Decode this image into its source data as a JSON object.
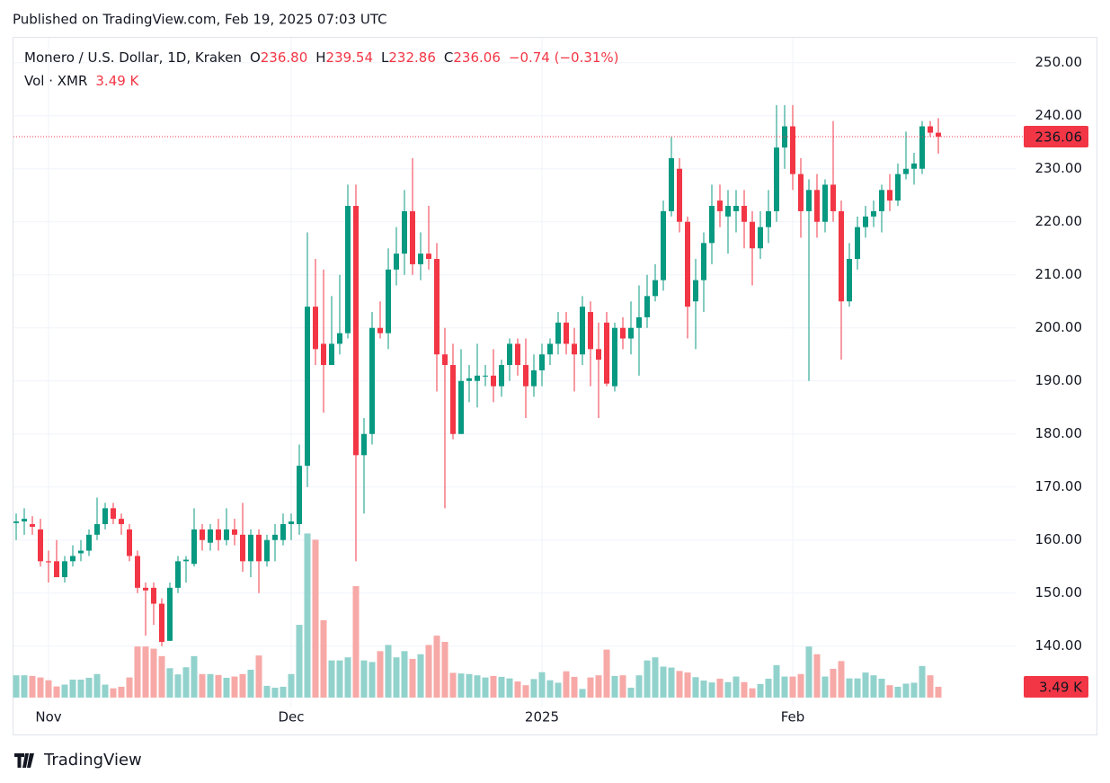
{
  "published": "Published on TradingView.com, Feb 19, 2025 07:03 UTC",
  "brand": "TradingView",
  "chart_data": {
    "type": "candlestick",
    "title": "Monero / U.S. Dollar, 1D, Kraken",
    "legend": {
      "o_key": "O",
      "o": "236.80",
      "h_key": "H",
      "h": "239.54",
      "l_key": "L",
      "l": "232.86",
      "c_key": "C",
      "c": "236.06",
      "change": "−0.74 (−0.31%)",
      "vol_title": "Vol · XMR",
      "vol": "3.49 K"
    },
    "up_color": "#089981",
    "down_color": "#f23645",
    "vol_up_color": "#92d2cc",
    "vol_down_color": "#f7a9a7",
    "grid": true,
    "open": [
      163.2,
      163.5,
      163,
      162,
      156,
      156,
      153,
      156,
      157.5,
      158,
      161,
      163,
      166,
      164,
      162,
      157,
      151,
      151,
      148,
      141,
      151,
      156,
      155.5,
      162,
      159.5,
      162,
      160,
      162,
      161,
      156,
      161,
      156,
      160,
      160,
      163,
      163,
      174,
      204,
      197,
      193,
      197,
      199,
      223,
      176,
      180,
      200,
      199,
      211,
      214,
      222,
      212,
      214,
      213,
      195,
      193,
      180,
      190,
      190,
      191,
      191,
      189,
      193,
      197,
      193,
      189,
      192,
      195,
      197,
      201,
      197,
      195,
      203,
      196,
      201,
      189,
      200,
      198,
      200,
      202,
      206,
      209,
      222,
      230,
      220,
      205,
      209,
      216,
      224,
      221,
      222,
      223,
      220,
      215,
      219,
      222,
      234,
      238,
      229,
      222,
      226,
      220,
      227,
      222,
      205,
      213,
      219,
      221,
      222,
      226,
      224,
      229,
      230,
      230,
      238,
      236.8
    ],
    "high": [
      165,
      166,
      164.5,
      164,
      158,
      160,
      157,
      159,
      160,
      162,
      168,
      167,
      167,
      165,
      163,
      158,
      152,
      152,
      149,
      152,
      157,
      157,
      166,
      163,
      163,
      164,
      166,
      164,
      167,
      162,
      162,
      161,
      163,
      165,
      165,
      178,
      218,
      213,
      211,
      206,
      210,
      227,
      227,
      183,
      203,
      205,
      215,
      219,
      226,
      232,
      218,
      223,
      216,
      200,
      197,
      196,
      193,
      197,
      193,
      196,
      194,
      198,
      198,
      198,
      195,
      197,
      198,
      203,
      203,
      200,
      206,
      205,
      201,
      203,
      201,
      202,
      205,
      208,
      210,
      212,
      224,
      236,
      232,
      221,
      213,
      218,
      227,
      227,
      226,
      226,
      226,
      222,
      222,
      226,
      242,
      242,
      242,
      232,
      228,
      229,
      228,
      239,
      224,
      216,
      221,
      223,
      224,
      227,
      229,
      231,
      237,
      233,
      239,
      239,
      239.54
    ],
    "low": [
      160,
      161,
      161,
      155,
      152,
      153,
      152,
      155,
      156,
      157,
      160,
      162,
      163,
      161,
      156,
      150,
      142,
      144,
      140,
      141,
      150,
      152,
      155,
      158,
      158,
      158,
      159,
      159,
      154,
      153,
      150,
      155,
      156,
      159,
      160,
      161,
      170,
      193,
      184,
      193,
      195,
      198,
      156,
      165,
      178,
      198,
      196,
      208,
      210,
      210,
      209,
      211,
      188,
      166,
      179,
      180,
      186,
      185,
      189,
      186,
      187,
      190,
      191,
      183,
      187,
      189,
      193,
      195,
      195,
      188,
      193,
      189,
      183,
      189,
      188,
      196,
      195,
      191,
      200,
      205,
      207,
      221,
      218,
      198,
      196,
      203,
      212,
      219,
      214,
      218,
      215,
      208,
      213,
      216,
      220,
      230,
      226,
      217,
      190,
      217,
      218,
      220,
      194,
      204,
      211,
      217,
      219,
      218,
      222,
      223,
      228,
      227,
      229,
      236,
      232.86
    ],
    "close": [
      163.5,
      164,
      162.5,
      156,
      155.8,
      153,
      156,
      157,
      158,
      161,
      163,
      166,
      164,
      163,
      157,
      151,
      150.5,
      148,
      140.8,
      151,
      156,
      156.3,
      162,
      160,
      162,
      160,
      162,
      161,
      156,
      161,
      156,
      160,
      161,
      163,
      163.5,
      174,
      204,
      196,
      193,
      197,
      199,
      223,
      176,
      180,
      200,
      199,
      211,
      214,
      222,
      212,
      214,
      213,
      195,
      193,
      180,
      190,
      190.5,
      191,
      191,
      189,
      193,
      197,
      193,
      189,
      192,
      195,
      197,
      201,
      197,
      195,
      204,
      196,
      194,
      189.5,
      200,
      198,
      200,
      202,
      206,
      209,
      222,
      232,
      220,
      204,
      209,
      216,
      223,
      222,
      223,
      223,
      220,
      215,
      219,
      222,
      234,
      238,
      229,
      222,
      226,
      220,
      227,
      222,
      205,
      213,
      219,
      221,
      222,
      226,
      224,
      229,
      230,
      231,
      238,
      236.8,
      236.06
    ],
    "volume": [
      7.2,
      7.2,
      7.0,
      6.5,
      5.6,
      3.6,
      4.2,
      5.8,
      5.8,
      6.4,
      7.6,
      4.2,
      3.0,
      3.5,
      6.5,
      16.5,
      16.5,
      15.8,
      13.4,
      9.5,
      7.5,
      9.8,
      13.4,
      7.6,
      7.6,
      7.3,
      6.4,
      6.8,
      7.6,
      9.0,
      13.6,
      3.8,
      3.2,
      3.5,
      7.6,
      23.5,
      53,
      51,
      25,
      12,
      12,
      13,
      36,
      12,
      11.5,
      15,
      17,
      13,
      15,
      12.5,
      14,
      17,
      20,
      18,
      8,
      7.8,
      7.6,
      7.2,
      6.5,
      7,
      6.7,
      6.2,
      5.2,
      4,
      6,
      8.2,
      5.6,
      4.8,
      8.5,
      6.7,
      2.8,
      6.5,
      7.2,
      15.5,
      7.0,
      7.2,
      3.2,
      7.2,
      12,
      13,
      10,
      9.7,
      8.6,
      8.1,
      6.6,
      5.5,
      4.9,
      6.1,
      5.0,
      6.8,
      5.0,
      3.0,
      4.4,
      6.1,
      10.5,
      6.8,
      6.8,
      7.6,
      16.5,
      14,
      6.8,
      9.3,
      11.8,
      6.2,
      6.2,
      8.1,
      7.2,
      6.1,
      4,
      3.5,
      4.5,
      4.8,
      10.2,
      7.2,
      3.49
    ],
    "last_price_label": "236.06",
    "last_volume_label": "3.49 K",
    "ylim": [
      128.6,
      254.7
    ],
    "yticks": [
      {
        "value": 140,
        "label": "140.00"
      },
      {
        "value": 150,
        "label": "150.00"
      },
      {
        "value": 160,
        "label": "160.00"
      },
      {
        "value": 170,
        "label": "170.00"
      },
      {
        "value": 180,
        "label": "180.00"
      },
      {
        "value": 190,
        "label": "190.00"
      },
      {
        "value": 200,
        "label": "200.00"
      },
      {
        "value": 210,
        "label": "210.00"
      },
      {
        "value": 220,
        "label": "220.00"
      },
      {
        "value": 230,
        "label": "230.00"
      },
      {
        "value": 240,
        "label": "240.00"
      },
      {
        "value": 250,
        "label": "250.00"
      }
    ],
    "volume_ylim": [
      0,
      63
    ],
    "xticks": [
      {
        "value": 4,
        "label": "Nov"
      },
      {
        "value": 34,
        "label": "Dec"
      },
      {
        "value": 65,
        "label": "2025"
      },
      {
        "value": 96,
        "label": "Feb"
      }
    ]
  }
}
